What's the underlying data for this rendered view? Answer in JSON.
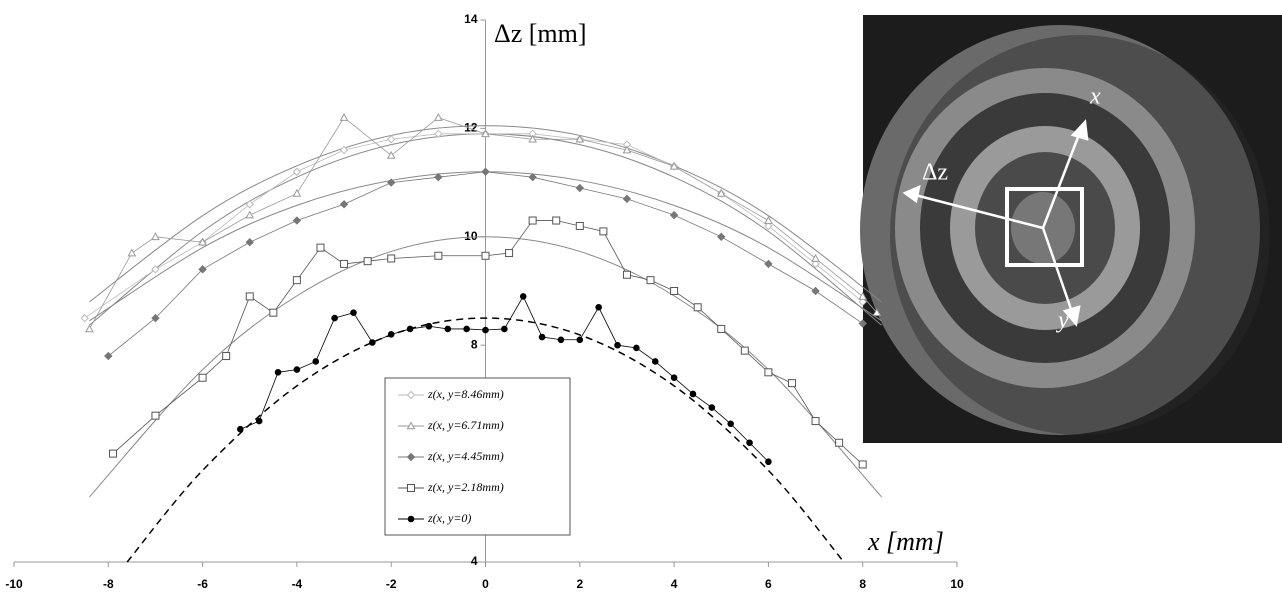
{
  "chart_data": {
    "type": "scatter",
    "x_label": "x [mm]",
    "y_label": "Δz [mm]",
    "xlim": [
      -10,
      10
    ],
    "xticks": [
      -10,
      -8,
      -6,
      -4,
      -2,
      0,
      2,
      4,
      6,
      8,
      10
    ],
    "ylim": [
      4,
      14
    ],
    "yticks": [
      4,
      6,
      8,
      10,
      12,
      14
    ],
    "series": [
      {
        "name": "z(x, y=8.46mm)",
        "color": "#bbbbbb",
        "marker": "diamond-open",
        "x": [
          -8.5,
          -7,
          -6,
          -5,
          -4,
          -3,
          -2,
          -1,
          0,
          1,
          2,
          3,
          4,
          5,
          6,
          7,
          8
        ],
        "values": [
          8.5,
          9.4,
          9.9,
          10.6,
          11.2,
          11.6,
          11.8,
          11.9,
          11.9,
          11.9,
          11.8,
          11.7,
          11.3,
          10.8,
          10.2,
          9.5,
          8.8
        ]
      },
      {
        "name": "z(x, y=6.71mm)",
        "color": "#999999",
        "marker": "triangle-open",
        "x": [
          -8.4,
          -7.5,
          -7,
          -6,
          -5,
          -4,
          -3,
          -2,
          -1,
          0,
          1,
          2,
          3,
          4,
          5,
          6,
          7,
          8,
          8.3
        ],
        "values": [
          8.3,
          9.7,
          10.0,
          9.9,
          10.4,
          10.8,
          12.2,
          11.5,
          12.2,
          11.9,
          11.8,
          11.8,
          11.6,
          11.3,
          10.8,
          10.3,
          9.6,
          8.9,
          8.6
        ]
      },
      {
        "name": "z(x, y=4.45mm)",
        "color": "#777777",
        "marker": "diamond-filled",
        "x": [
          -8,
          -7,
          -6,
          -5,
          -4,
          -3,
          -2,
          -1,
          0,
          1,
          2,
          3,
          4,
          5,
          6,
          7,
          8
        ],
        "values": [
          7.8,
          8.5,
          9.4,
          9.9,
          10.3,
          10.6,
          11.0,
          11.1,
          11.2,
          11.1,
          10.9,
          10.7,
          10.4,
          10.0,
          9.5,
          9.0,
          8.4
        ]
      },
      {
        "name": "z(x, y=2.18mm)",
        "color": "#555555",
        "marker": "square-open",
        "x": [
          -7.9,
          -7,
          -6,
          -5.5,
          -5,
          -4.5,
          -4,
          -3.5,
          -3,
          -2.5,
          -2,
          -1,
          0,
          0.5,
          1,
          1.5,
          2,
          2.5,
          3,
          3.5,
          4,
          4.5,
          5,
          5.5,
          6,
          6.5,
          7,
          7.5,
          8
        ],
        "values": [
          6.0,
          6.7,
          7.4,
          7.8,
          8.9,
          8.6,
          9.2,
          9.8,
          9.5,
          9.55,
          9.6,
          9.65,
          9.65,
          9.7,
          10.3,
          10.3,
          10.2,
          10.1,
          9.3,
          9.2,
          9.0,
          8.7,
          8.3,
          7.9,
          7.5,
          7.3,
          6.6,
          6.2,
          5.8
        ]
      },
      {
        "name": "z(x, y=0)",
        "color": "#000000",
        "marker": "circle-filled",
        "x": [
          -5.2,
          -4.8,
          -4.4,
          -4,
          -3.6,
          -3.2,
          -2.8,
          -2.4,
          -2,
          -1.6,
          -1.2,
          -0.8,
          -0.4,
          0,
          0.4,
          0.8,
          1.2,
          1.6,
          2,
          2.4,
          2.8,
          3.2,
          3.6,
          4,
          4.4,
          4.8,
          5.2,
          5.6,
          6
        ],
        "values": [
          6.45,
          6.6,
          7.5,
          7.55,
          7.7,
          8.5,
          8.6,
          8.05,
          8.2,
          8.3,
          8.35,
          8.3,
          8.3,
          8.28,
          8.3,
          8.9,
          8.15,
          8.1,
          8.1,
          8.7,
          8.0,
          7.95,
          7.7,
          7.4,
          7.1,
          6.85,
          6.55,
          6.2,
          5.85
        ]
      }
    ],
    "fits": [
      {
        "color": "#888888",
        "dashed": false,
        "x": [
          -8.4,
          -6,
          -4,
          -2,
          0,
          2,
          4,
          6,
          8.4
        ],
        "values": [
          8.8,
          10.39,
          11.31,
          11.87,
          12.05,
          11.87,
          11.31,
          10.39,
          8.8
        ]
      },
      {
        "color": "#888888",
        "dashed": false,
        "x": [
          -8.4,
          -6,
          -4,
          -2,
          0,
          2,
          4,
          6,
          8.4
        ],
        "values": [
          8.37,
          10.1,
          11.1,
          11.7,
          11.9,
          11.7,
          11.1,
          10.1,
          8.37
        ]
      },
      {
        "color": "#888888",
        "dashed": false,
        "x": [
          -8.4,
          -6,
          -4,
          -2,
          0,
          2,
          4,
          6,
          8.4
        ],
        "values": [
          8.45,
          9.8,
          10.58,
          11.04,
          11.2,
          11.04,
          10.58,
          9.8,
          8.45
        ]
      },
      {
        "color": "#888888",
        "dashed": false,
        "x": [
          -8.4,
          -6,
          -4,
          -2,
          0,
          2,
          4,
          6,
          8.4
        ],
        "values": [
          5.2,
          7.55,
          8.91,
          9.73,
          10.0,
          9.73,
          8.91,
          7.55,
          5.2
        ]
      },
      {
        "color": "#000000",
        "dashed": true,
        "x": [
          -7.6,
          -6,
          -4,
          -2,
          0,
          2,
          4,
          6,
          7.6
        ],
        "values": [
          4.0,
          5.69,
          7.25,
          8.19,
          8.5,
          8.19,
          7.25,
          5.69,
          4.0
        ]
      }
    ]
  },
  "photo": {
    "labels": [
      "x",
      "y",
      "Δz"
    ]
  }
}
